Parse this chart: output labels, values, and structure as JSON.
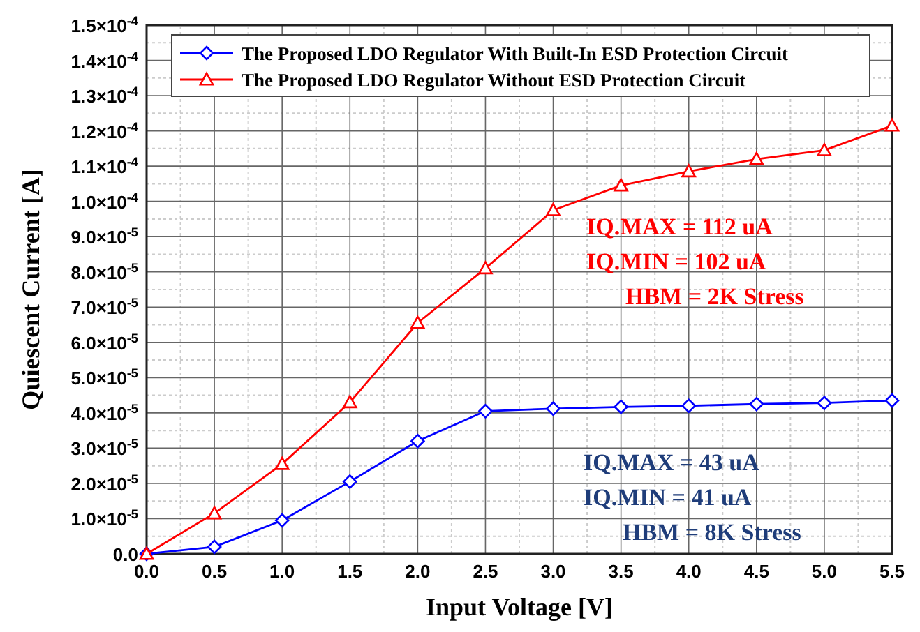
{
  "chart_data": {
    "type": "line",
    "xlabel": "Input Voltage [V]",
    "ylabel": "Quiescent Current [A]",
    "x": [
      0,
      0.5,
      1,
      1.5,
      2,
      2.5,
      3,
      3.5,
      4,
      4.5,
      5,
      5.5
    ],
    "series": [
      {
        "name": "The Proposed LDO Regulator With Built-In ESD Protection Circuit",
        "color": "#0000ff",
        "marker": "diamond",
        "values": [
          0,
          2e-06,
          9.5e-06,
          2.05e-05,
          3.2e-05,
          4.05e-05,
          4.12e-05,
          4.17e-05,
          4.2e-05,
          4.25e-05,
          4.28e-05,
          4.35e-05
        ]
      },
      {
        "name": "The Proposed LDO Regulator Without ESD Protection Circuit",
        "color": "#ff0000",
        "marker": "triangle",
        "values": [
          0,
          1.15e-05,
          2.55e-05,
          4.3e-05,
          6.55e-05,
          8.1e-05,
          9.75e-05,
          0.0001045,
          0.0001085,
          0.000112,
          0.0001145,
          0.0001215
        ]
      }
    ],
    "xlim": [
      0,
      5.5
    ],
    "xticks": [
      {
        "value": 0,
        "label": "0.0"
      },
      {
        "value": 0.5,
        "label": "0.5"
      },
      {
        "value": 1,
        "label": "1.0"
      },
      {
        "value": 1.5,
        "label": "1.5"
      },
      {
        "value": 2,
        "label": "2.0"
      },
      {
        "value": 2.5,
        "label": "2.5"
      },
      {
        "value": 3,
        "label": "3.0"
      },
      {
        "value": 3.5,
        "label": "3.5"
      },
      {
        "value": 4,
        "label": "4.0"
      },
      {
        "value": 4.5,
        "label": "4.5"
      },
      {
        "value": 5,
        "label": "5.0"
      },
      {
        "value": 5.5,
        "label": "5.5"
      }
    ],
    "ylim": [
      0,
      0.00015
    ],
    "yticks": [
      {
        "value": 0,
        "label": "0.0"
      },
      {
        "value": 1e-05,
        "label": "1.0×10$^{-5}$"
      },
      {
        "value": 2e-05,
        "label": "2.0×10$^{-5}$"
      },
      {
        "value": 3e-05,
        "label": "3.0×10$^{-5}$"
      },
      {
        "value": 4e-05,
        "label": "4.0×10$^{-5}$"
      },
      {
        "value": 5e-05,
        "label": "5.0×10$^{-5}$"
      },
      {
        "value": 6e-05,
        "label": "6.0×10$^{-5}$"
      },
      {
        "value": 7e-05,
        "label": "7.0×10$^{-5}$"
      },
      {
        "value": 8e-05,
        "label": "8.0×10$^{-5}$"
      },
      {
        "value": 9e-05,
        "label": "9.0×10$^{-5}$"
      },
      {
        "value": 0.0001,
        "label": "1.0×10$^{-4}$"
      },
      {
        "value": 0.00011,
        "label": "1.1×10$^{-4}$"
      },
      {
        "value": 0.00012,
        "label": "1.2×10$^{-4}$"
      },
      {
        "value": 0.00013,
        "label": "1.3×10$^{-4}$"
      },
      {
        "value": 0.00014,
        "label": "1.4×10$^{-4}$"
      },
      {
        "value": 0.00015,
        "label": "1.5×10$^{-4}$"
      }
    ],
    "grid": true,
    "legend": "top",
    "line_style": "solid",
    "annotations": [
      "IQ.MAX = 112 uA",
      "IQ.MIN  = 102 uA",
      "HBM = 2K Stress",
      "IQ.MAX = 43 uA",
      "IQ.MIN  = 41 uA",
      "HBM = 8K Stress"
    ]
  }
}
